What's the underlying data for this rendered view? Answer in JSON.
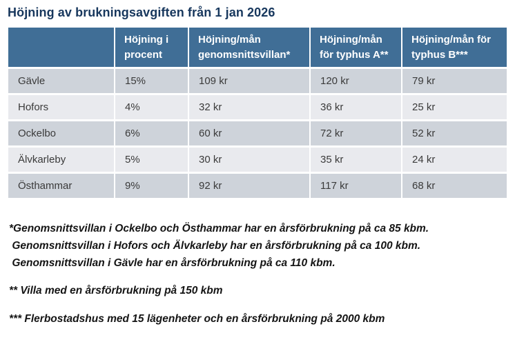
{
  "title": "Höjning av brukningsavgiften från 1 jan 2026",
  "colors": {
    "title_text": "#17375d",
    "header_bg": "#406e96",
    "header_text": "#ffffff",
    "row_stripe_dark": "#ced3da",
    "row_stripe_light": "#e9eaee",
    "body_text": "#3a3a3a"
  },
  "table": {
    "headers": {
      "municipality": "",
      "percent": "Höjning i procent",
      "villa": "Höjning/mån genomsnittsvillan*",
      "typhus_a": "Höjning/mån för typhus A**",
      "typhus_b": "Höjning/mån för typhus B***"
    },
    "rows": [
      {
        "municipality": "Gävle",
        "values": [
          "15%",
          "109 kr",
          "120 kr",
          "79 kr"
        ]
      },
      {
        "municipality": "Hofors",
        "values": [
          "4%",
          "32 kr",
          "36 kr",
          "25 kr"
        ]
      },
      {
        "municipality": "Ockelbo",
        "values": [
          "6%",
          "60 kr",
          "72 kr",
          "52 kr"
        ]
      },
      {
        "municipality": "Älvkarleby",
        "values": [
          "5%",
          "30 kr",
          "35 kr",
          "24 kr"
        ]
      },
      {
        "municipality": "Östhammar",
        "values": [
          "9%",
          "92 kr",
          "117 kr",
          "68 kr"
        ]
      }
    ]
  },
  "footnotes": {
    "villa_line1": "*Genomsnittsvillan i Ockelbo och Östhammar har en årsförbrukning på ca 85 kbm.",
    "villa_line2": " Genomsnittsvillan i Hofors och Älvkarleby har en årsförbrukning på ca 100 kbm.",
    "villa_line3": " Genomsnittsvillan i Gävle har en årsförbrukning på ca 110 kbm.",
    "typhus_a": "** Villa med en årsförbrukning på 150 kbm",
    "typhus_b": "*** Flerbostadshus med 15 lägenheter och en årsförbrukning på 2000 kbm"
  }
}
